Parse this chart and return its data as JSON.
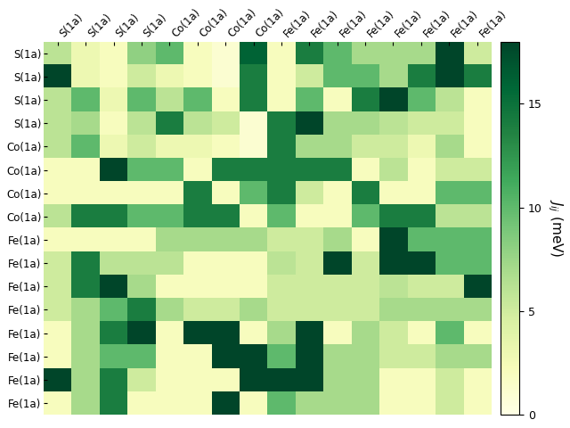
{
  "row_labels": [
    "S(1a)",
    "S(1a)",
    "S(1a)",
    "S(1a)",
    "Co(1a)",
    "Co(1a)",
    "Co(1a)",
    "Co(1a)",
    "Fe(1a)",
    "Fe(1a)",
    "Fe(1a)",
    "Fe(1a)",
    "Fe(1a)",
    "Fe(1a)",
    "Fe(1a)",
    "Fe(1a)"
  ],
  "col_labels": [
    "S(1a)",
    "S(1a)",
    "S(1a)",
    "S(1a)",
    "Co(1a)",
    "Co(1a)",
    "Co(1a)",
    "Co(1a)",
    "Fe(1a)",
    "Fe(1a)",
    "Fe(1a)",
    "Fe(1a)",
    "Fe(1a)",
    "Fe(1a)",
    "Fe(1a)",
    "Fe(1a)"
  ],
  "matrix": [
    [
      6,
      3,
      2,
      8,
      10,
      2,
      1,
      16,
      2,
      14,
      10,
      7,
      7,
      7,
      18,
      5
    ],
    [
      18,
      3,
      2,
      5,
      3,
      2,
      1,
      14,
      2,
      5,
      10,
      10,
      7,
      14,
      18,
      14
    ],
    [
      6,
      10,
      3,
      10,
      6,
      10,
      2,
      14,
      2,
      10,
      2,
      14,
      18,
      10,
      6,
      2
    ],
    [
      6,
      7,
      2,
      6,
      14,
      6,
      5,
      1,
      14,
      18,
      7,
      7,
      6,
      5,
      5,
      2
    ],
    [
      6,
      10,
      3,
      5,
      3,
      3,
      2,
      1,
      14,
      7,
      7,
      5,
      5,
      3,
      7,
      2
    ],
    [
      2,
      2,
      18,
      10,
      10,
      2,
      14,
      14,
      14,
      14,
      14,
      2,
      6,
      2,
      5,
      5
    ],
    [
      2,
      2,
      2,
      2,
      2,
      14,
      2,
      10,
      14,
      5,
      2,
      14,
      2,
      2,
      10,
      10
    ],
    [
      6,
      14,
      14,
      10,
      10,
      14,
      14,
      2,
      10,
      2,
      2,
      10,
      14,
      14,
      6,
      6
    ],
    [
      2,
      2,
      2,
      2,
      7,
      7,
      7,
      7,
      5,
      5,
      7,
      2,
      18,
      10,
      10,
      10
    ],
    [
      5,
      14,
      6,
      6,
      6,
      2,
      2,
      2,
      6,
      5,
      18,
      5,
      18,
      18,
      10,
      10
    ],
    [
      5,
      14,
      18,
      7,
      2,
      2,
      2,
      2,
      5,
      5,
      5,
      5,
      6,
      5,
      5,
      18
    ],
    [
      5,
      7,
      10,
      14,
      7,
      5,
      5,
      7,
      5,
      5,
      5,
      5,
      7,
      7,
      7,
      7
    ],
    [
      2,
      7,
      14,
      18,
      2,
      18,
      18,
      2,
      7,
      18,
      2,
      7,
      5,
      2,
      10,
      2
    ],
    [
      2,
      7,
      10,
      10,
      2,
      2,
      18,
      18,
      10,
      18,
      7,
      7,
      5,
      5,
      7,
      7
    ],
    [
      18,
      7,
      14,
      5,
      2,
      2,
      2,
      18,
      18,
      18,
      7,
      7,
      2,
      2,
      5,
      2
    ],
    [
      2,
      7,
      14,
      2,
      2,
      2,
      18,
      2,
      10,
      7,
      7,
      7,
      2,
      2,
      5,
      2
    ]
  ],
  "cmap": "YlGn",
  "vmin": 0,
  "vmax": 18,
  "colorbar_label": "$J_{ij}$ (meV)",
  "colorbar_ticks": [
    0,
    5,
    10,
    15
  ],
  "figsize": [
    6.4,
    4.8
  ],
  "dpi": 100
}
